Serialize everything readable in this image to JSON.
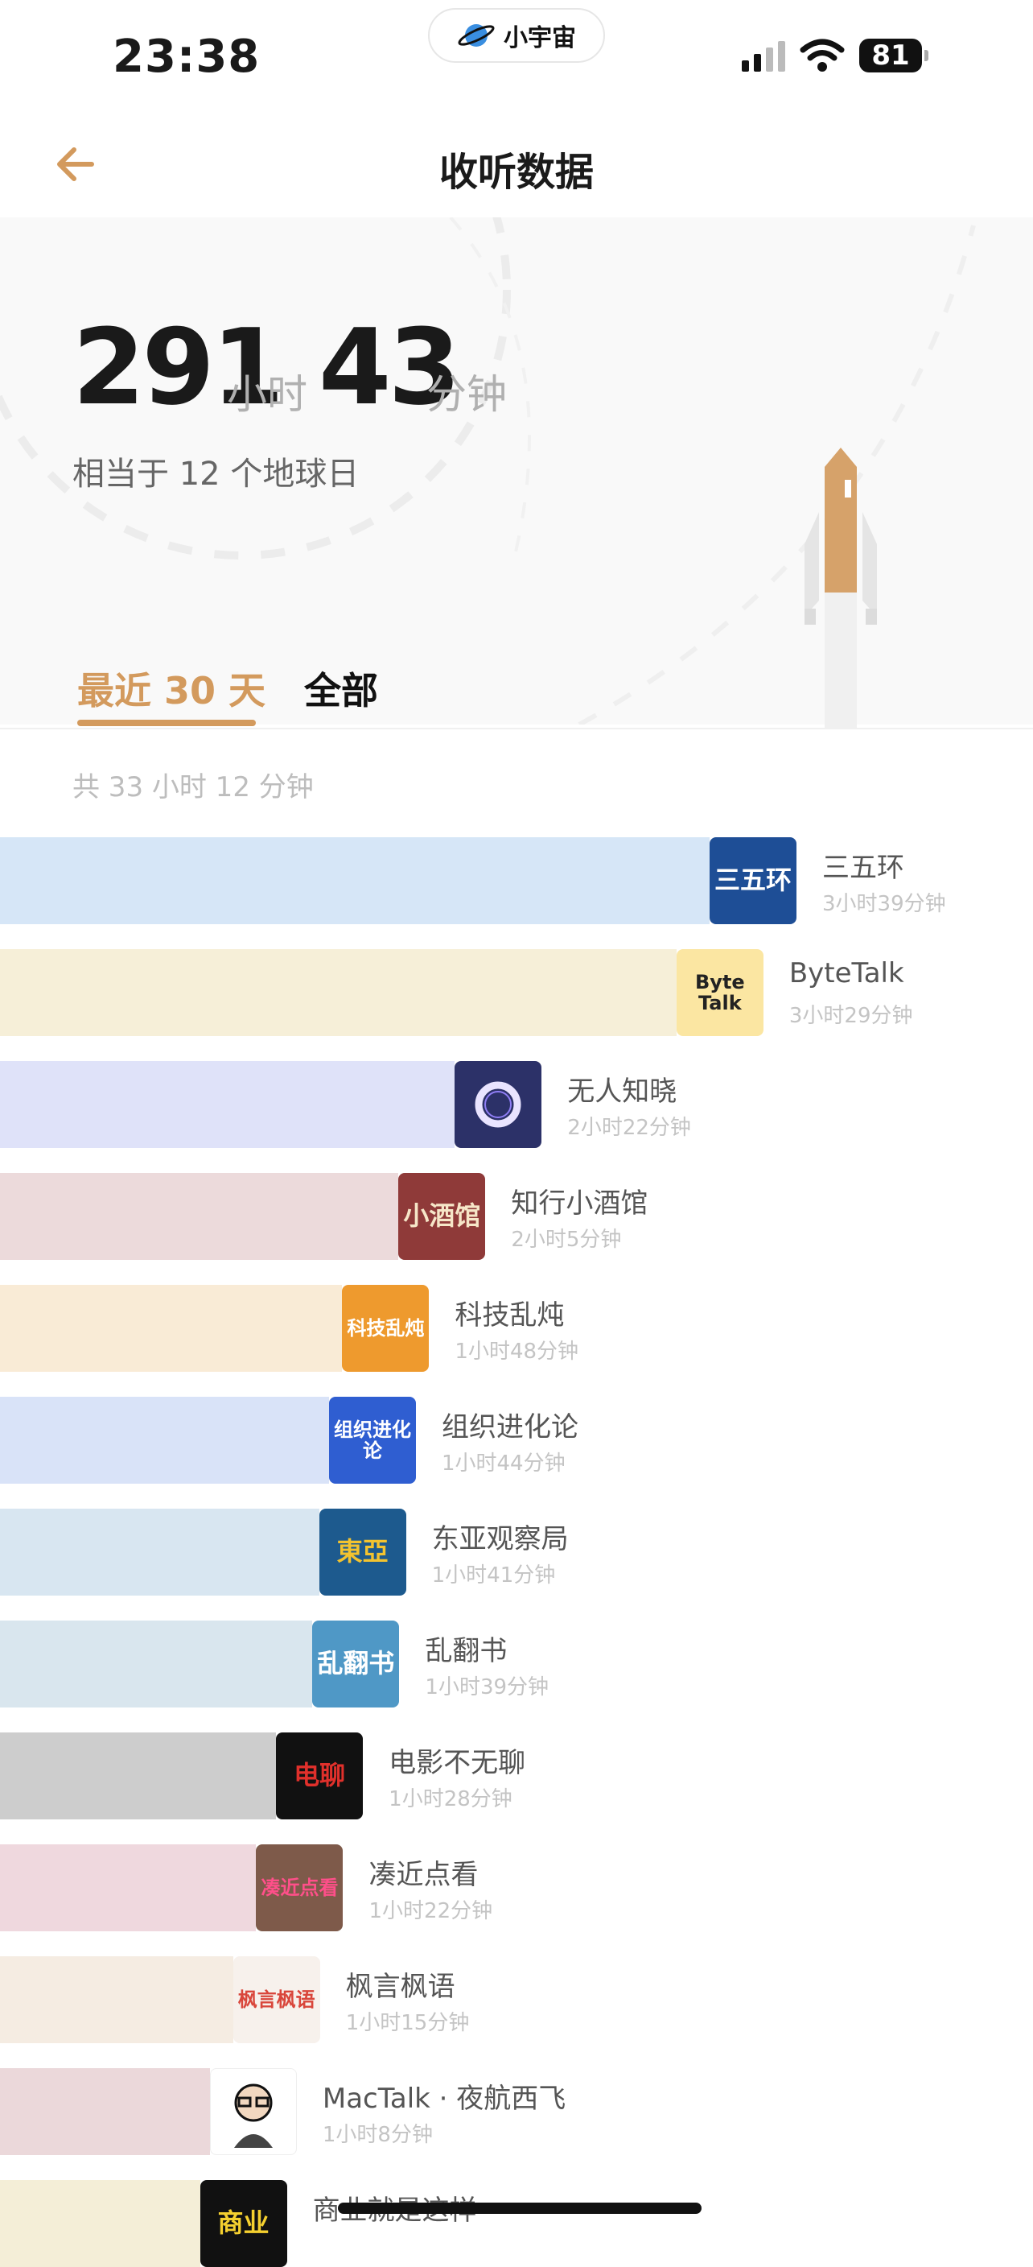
{
  "status": {
    "time": "23:38",
    "app_pill": "小宇宙",
    "battery": "81"
  },
  "header": {
    "title": "收听数据"
  },
  "summary": {
    "hours": "291",
    "hours_unit": "小时",
    "minutes": "43",
    "minutes_unit": "分钟",
    "equivalent": "相当于 12 个地球日"
  },
  "tabs": [
    {
      "label": "最近 30 天",
      "active": true
    },
    {
      "label": "全部",
      "active": false
    }
  ],
  "period_total": "共 33 小时 12 分钟",
  "podcasts": [
    {
      "name": "三五环",
      "duration": "3小时39分钟",
      "minutes": 219,
      "bar_color": "#d6e6f7",
      "cover_color": "#1e4e96",
      "cover_text": "三五环",
      "cover_text_color": "#ffffff"
    },
    {
      "name": "ByteTalk",
      "duration": "3小时29分钟",
      "minutes": 209,
      "bar_color": "#f6efd8",
      "cover_color": "#fbe6a2",
      "cover_text": "Byte Talk",
      "cover_text_color": "#222222"
    },
    {
      "name": "无人知晓",
      "duration": "2小时22分钟",
      "minutes": 142,
      "bar_color": "#dfe2f9",
      "cover_color": "#2c3168",
      "cover_text": "",
      "cover_text_color": "#ffffff"
    },
    {
      "name": "知行小酒馆",
      "duration": "2小时5分钟",
      "minutes": 125,
      "bar_color": "#ecdadb",
      "cover_color": "#8f3a39",
      "cover_text": "小酒馆",
      "cover_text_color": "#f6e6c8"
    },
    {
      "name": "科技乱炖",
      "duration": "1小时48分钟",
      "minutes": 108,
      "bar_color": "#f9ebd6",
      "cover_color": "#ee9a2e",
      "cover_text": "科技乱炖",
      "cover_text_color": "#ffffff"
    },
    {
      "name": "组织进化论",
      "duration": "1小时44分钟",
      "minutes": 104,
      "bar_color": "#d9e3f8",
      "cover_color": "#2f5ed1",
      "cover_text": "组织进化论",
      "cover_text_color": "#ffffff"
    },
    {
      "name": "东亚观察局",
      "duration": "1小时41分钟",
      "minutes": 101,
      "bar_color": "#d8e6f1",
      "cover_color": "#1d5a8e",
      "cover_text": "東亞",
      "cover_text_color": "#f3c32f"
    },
    {
      "name": "乱翻书",
      "duration": "1小时39分钟",
      "minutes": 99,
      "bar_color": "#d9e6ee",
      "cover_color": "#4f98c6",
      "cover_text": "乱翻书",
      "cover_text_color": "#ffffff"
    },
    {
      "name": "电影不无聊",
      "duration": "1小时28分钟",
      "minutes": 88,
      "bar_color": "#cdcdcd",
      "cover_color": "#111111",
      "cover_text": "电聊",
      "cover_text_color": "#e0302b"
    },
    {
      "name": "凑近点看",
      "duration": "1小时22分钟",
      "minutes": 82,
      "bar_color": "#efd8de",
      "cover_color": "#7e5a4a",
      "cover_text": "凑近点看",
      "cover_text_color": "#ff4f8a"
    },
    {
      "name": "枫言枫语",
      "duration": "1小时15分钟",
      "minutes": 75,
      "bar_color": "#f5ece2",
      "cover_color": "#f7f1ec",
      "cover_text": "枫言枫语",
      "cover_text_color": "#d9463b"
    },
    {
      "name": "MacTalk · 夜航西飞",
      "duration": "1小时8分钟",
      "minutes": 68,
      "bar_color": "#ebd8da",
      "cover_color": "#ffffff",
      "cover_text": "",
      "cover_text_color": "#111111"
    },
    {
      "name": "商业就是这样",
      "duration": "",
      "minutes": 65,
      "bar_color": "#f4eed7",
      "cover_color": "#111111",
      "cover_text": "商业",
      "cover_text_color": "#f5d02f"
    }
  ]
}
